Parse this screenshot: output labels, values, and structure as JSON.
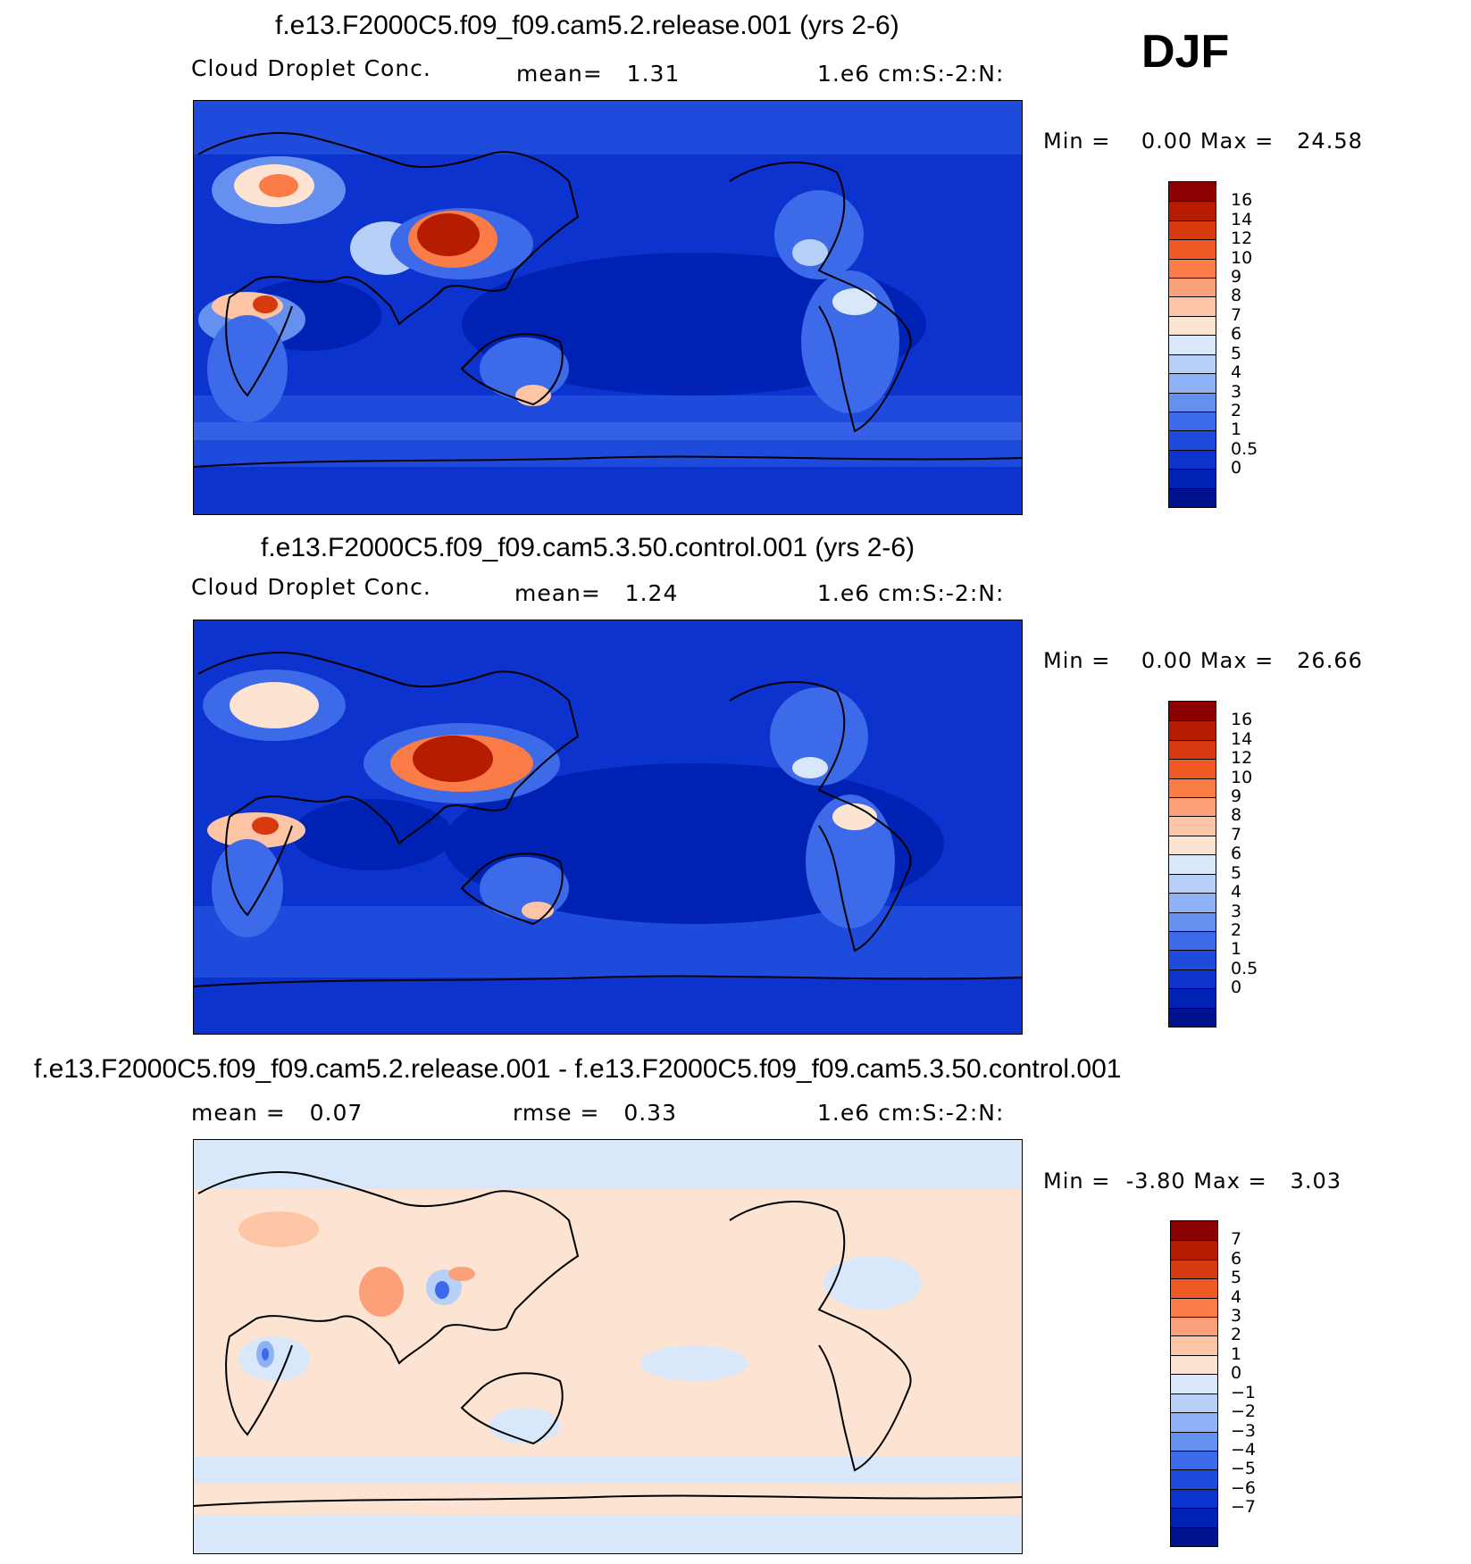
{
  "season": "DJF",
  "panels": [
    {
      "title": "f.e13.F2000C5.f09_f09.cam5.2.release.001 (yrs 2-6)",
      "field": "Cloud Droplet Conc.",
      "stat": "mean=   1.31",
      "units": "1.e6 cm:S:-2:N:",
      "minmax": "Min =    0.00 Max =   24.58",
      "colorbar_labels": [
        "16",
        "14",
        "12",
        "10",
        "9",
        "8",
        "7",
        "6",
        "5",
        "4",
        "3",
        "2",
        "1",
        "0.5",
        "0"
      ],
      "colorbar_colors": [
        "#8b0000",
        "#b51c00",
        "#d63a0e",
        "#ef5a24",
        "#fb7c47",
        "#fca079",
        "#fdc4a6",
        "#fde4d2",
        "#d8e8fa",
        "#b6d0f8",
        "#8fb2f6",
        "#6590f0",
        "#3d6ae8",
        "#1f4bdc",
        "#0c33cd",
        "#0022b4",
        "#00138e"
      ],
      "map_type": "absolute"
    },
    {
      "title": "f.e13.F2000C5.f09_f09.cam5.3.50.control.001 (yrs 2-6)",
      "field": "Cloud Droplet Conc.",
      "stat": "mean=   1.24",
      "units": "1.e6 cm:S:-2:N:",
      "minmax": "Min =    0.00 Max =   26.66",
      "colorbar_labels": [
        "16",
        "14",
        "12",
        "10",
        "9",
        "8",
        "7",
        "6",
        "5",
        "4",
        "3",
        "2",
        "1",
        "0.5",
        "0"
      ],
      "colorbar_colors": [
        "#8b0000",
        "#b51c00",
        "#d63a0e",
        "#ef5a24",
        "#fb7c47",
        "#fca079",
        "#fdc4a6",
        "#fde4d2",
        "#d8e8fa",
        "#b6d0f8",
        "#8fb2f6",
        "#6590f0",
        "#3d6ae8",
        "#1f4bdc",
        "#0c33cd",
        "#0022b4",
        "#00138e"
      ],
      "map_type": "absolute"
    },
    {
      "title": "f.e13.F2000C5.f09_f09.cam5.2.release.001 - f.e13.F2000C5.f09_f09.cam5.3.50.control.001",
      "field": "mean =   0.07",
      "stat": "rmse =   0.33",
      "units": "1.e6 cm:S:-2:N:",
      "minmax": "Min =  -3.80 Max =   3.03",
      "colorbar_labels": [
        "7",
        "6",
        "5",
        "4",
        "3",
        "2",
        "1",
        "0",
        "-1",
        "-2",
        "-3",
        "-4",
        "-5",
        "-6",
        "-7"
      ],
      "colorbar_colors": [
        "#8b0000",
        "#b51c00",
        "#d63a0e",
        "#ef5a24",
        "#fb7c47",
        "#fca079",
        "#fdc4a6",
        "#fde4d2",
        "#d8e8fa",
        "#b6d0f8",
        "#8fb2f6",
        "#6590f0",
        "#3d6ae8",
        "#1f4bdc",
        "#0c33cd",
        "#0022b4",
        "#00138e"
      ],
      "map_type": "difference"
    }
  ]
}
